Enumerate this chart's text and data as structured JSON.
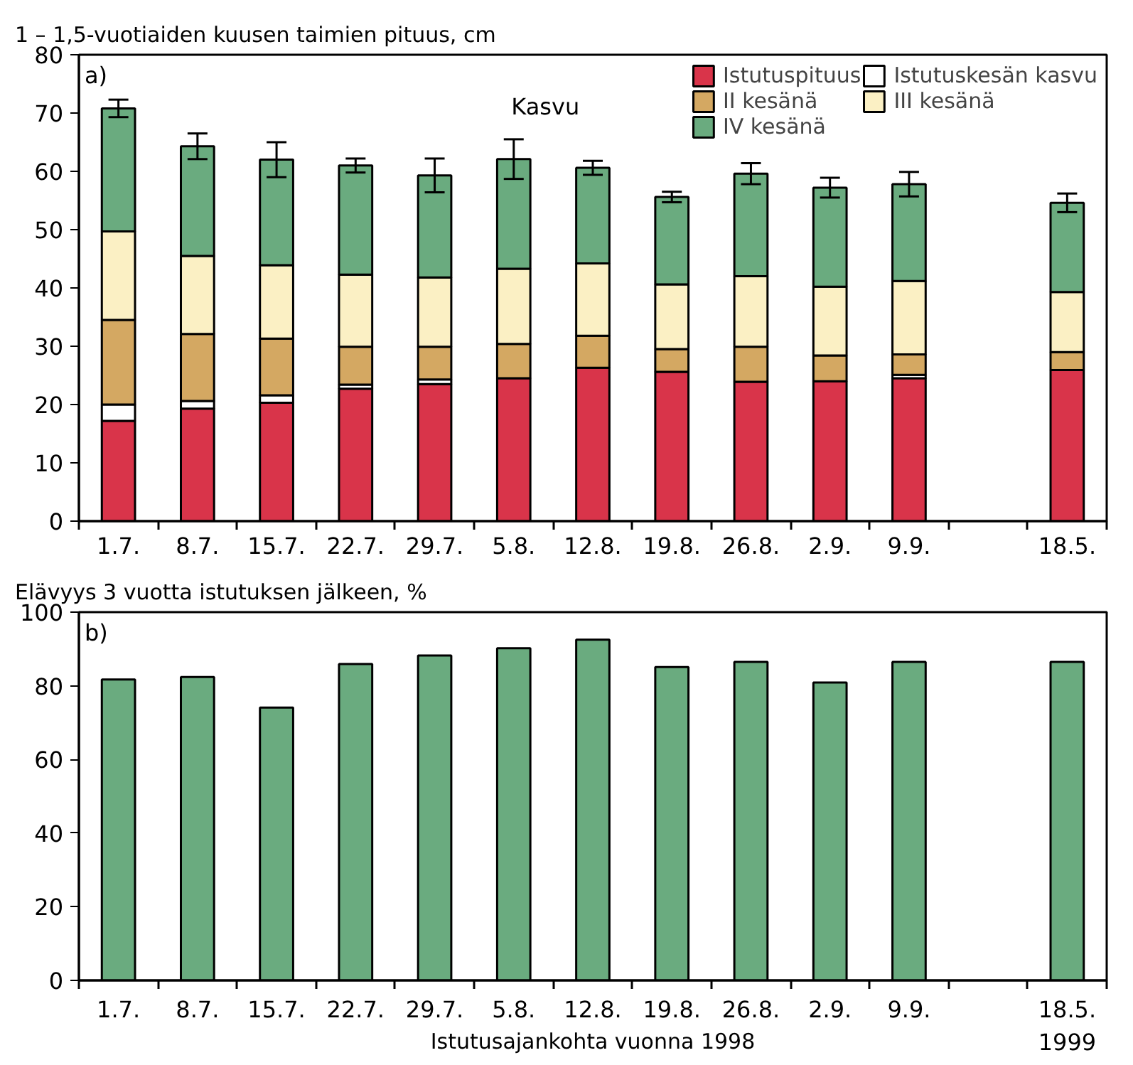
{
  "chart_data": [
    {
      "type": "bar",
      "title": "1 – 1,5-vuotiaiden kuusen taimien pituus, cm",
      "stacked": true,
      "categories": [
        "1.7.",
        "8.7.",
        "15.7.",
        "22.7.",
        "29.7.",
        "5.8.",
        "12.8.",
        "19.8.",
        "26.8.",
        "2.9.",
        "9.9.",
        null,
        "18.5."
      ],
      "series": [
        {
          "name": "Istutuspituus",
          "color": "#d9344a",
          "values": [
            17.2,
            19.3,
            20.3,
            22.7,
            23.5,
            24.5,
            26.3,
            25.6,
            23.9,
            24.0,
            24.5,
            null,
            25.9
          ]
        },
        {
          "name": "Istutuskesän kasvu",
          "color": "#ffffff",
          "values": [
            2.8,
            1.3,
            1.3,
            0.7,
            0.8,
            null,
            0,
            0,
            0,
            0,
            0.6,
            null,
            0
          ]
        },
        {
          "name": "II kesänä",
          "color": "#d4a862",
          "values": [
            14.5,
            11.5,
            9.7,
            6.5,
            5.6,
            5.9,
            5.5,
            3.9,
            6.0,
            4.4,
            3.5,
            null,
            3.1
          ]
        },
        {
          "name": "III kesänä",
          "color": "#fbf0c4",
          "values": [
            15.2,
            13.4,
            12.6,
            12.4,
            11.9,
            12.9,
            12.4,
            11.1,
            12.1,
            11.8,
            12.6,
            null,
            10.3
          ]
        },
        {
          "name": "IV kesänä",
          "color": "#6aab7f",
          "values": [
            21.1,
            18.8,
            18.1,
            18.7,
            17.5,
            18.8,
            16.4,
            15.0,
            17.6,
            17.0,
            16.6,
            null,
            15.3
          ],
          "errors": [
            1.5,
            2.2,
            3.0,
            1.2,
            2.9,
            3.4,
            1.2,
            0.9,
            1.8,
            1.7,
            2.1,
            null,
            1.6
          ]
        }
      ],
      "ylim": [
        0,
        80
      ],
      "yticks": [
        0,
        10,
        20,
        30,
        40,
        50,
        60,
        70,
        80
      ],
      "grid": false,
      "legend": "top right",
      "annotations": [
        "a)",
        "Kasvu"
      ]
    },
    {
      "type": "bar",
      "title": "Elävyys 3 vuotta istutuksen jälkeen, %",
      "xlabel": "Istutusajankohta vuonna 1998",
      "categories": [
        "1.7.",
        "8.7.",
        "15.7.",
        "22.7.",
        "29.7.",
        "5.8.",
        "12.8.",
        "19.8.",
        "26.8.",
        "2.9.",
        "9.9.",
        null,
        "18.5."
      ],
      "series": [
        {
          "color": "#6aab7f",
          "values": [
            81.7,
            82.4,
            74.1,
            85.9,
            88.2,
            90.2,
            92.5,
            85.1,
            86.5,
            80.9,
            86.5,
            null,
            86.5
          ]
        }
      ],
      "ylim": [
        0,
        100
      ],
      "yticks": [
        0,
        20,
        40,
        60,
        80,
        100
      ],
      "grid": false,
      "legend": false,
      "annotations": [
        "b)",
        "1999"
      ]
    }
  ]
}
